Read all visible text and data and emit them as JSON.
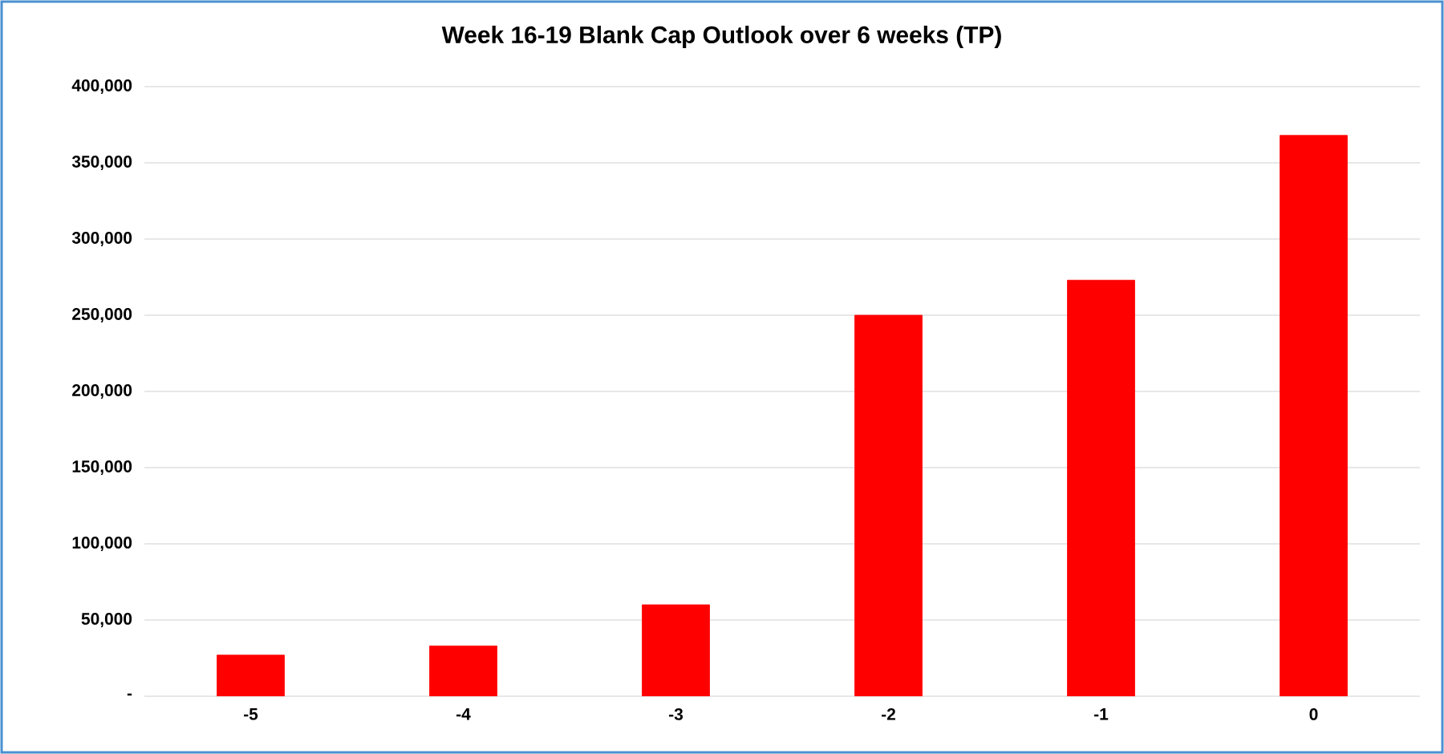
{
  "chart_data": {
    "type": "bar",
    "title": "Week 16-19 Blank Cap Outlook over 6 weeks (TP)",
    "categories": [
      "-5",
      "-4",
      "-3",
      "-2",
      "-1",
      "0"
    ],
    "values": [
      27000,
      33000,
      60000,
      250000,
      273000,
      368000
    ],
    "color": "#ff0000",
    "ylim": [
      0,
      400000
    ],
    "yticks": [
      {
        "value": 0,
        "label": "-"
      },
      {
        "value": 50000,
        "label": "50,000"
      },
      {
        "value": 100000,
        "label": "100,000"
      },
      {
        "value": 150000,
        "label": "150,000"
      },
      {
        "value": 200000,
        "label": "200,000"
      },
      {
        "value": 250000,
        "label": "250,000"
      },
      {
        "value": 300000,
        "label": "300,000"
      },
      {
        "value": 350000,
        "label": "350,000"
      },
      {
        "value": 400000,
        "label": "400,000"
      }
    ],
    "grid": "y"
  }
}
